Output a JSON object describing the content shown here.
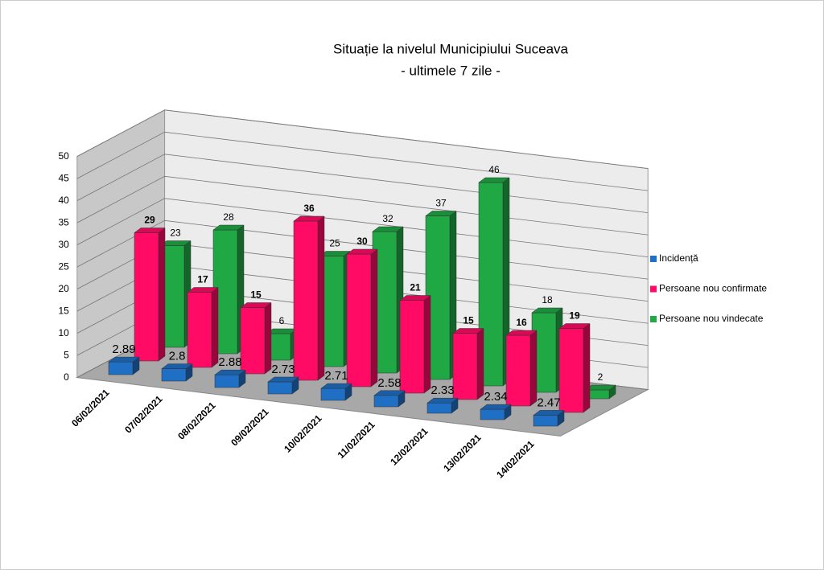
{
  "chart_data": {
    "type": "bar3d",
    "title": "Situație la nivelul Municipiului Suceava",
    "subtitle": "- ultimele 7 zile -",
    "categories": [
      "06/02/2021",
      "07/02/2021",
      "08/02/2021",
      "09/02/2021",
      "10/02/2021",
      "11/02/2021",
      "12/02/2021",
      "13/02/2021",
      "14/02/2021"
    ],
    "series": [
      {
        "name": "Incidență",
        "color": "#1f6fc4",
        "values": [
          2.89,
          2.8,
          2.88,
          2.73,
          2.71,
          2.58,
          2.33,
          2.34,
          2.47
        ]
      },
      {
        "name": "Persoane nou confirmate",
        "color": "#ff0a64",
        "values": [
          29,
          17,
          15,
          36,
          30,
          21,
          15,
          16,
          19
        ]
      },
      {
        "name": "Persoane nou vindecate",
        "color": "#1fa844",
        "values": [
          23,
          28,
          6,
          25,
          32,
          37,
          46,
          18,
          2
        ]
      }
    ],
    "ylim": [
      0,
      50
    ],
    "yticks": [
      0,
      5,
      10,
      15,
      20,
      25,
      30,
      35,
      40,
      45,
      50
    ],
    "grid": true,
    "legend": "right"
  }
}
